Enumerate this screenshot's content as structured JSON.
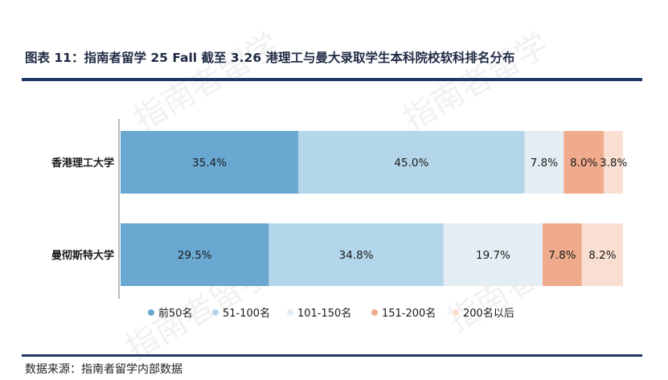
{
  "header": {
    "title": "图表 11：指南者留学 25 Fall 截至 3.26 港理工与曼大录取学生本科院校软科排名分布"
  },
  "footer": {
    "source": "数据来源：指南者留学内部数据"
  },
  "watermark": "指南者留学",
  "chart_data": {
    "type": "bar",
    "orientation": "horizontal",
    "stacked": "percent",
    "categories": [
      "香港理工大学",
      "曼彻斯特大学"
    ],
    "series": [
      {
        "name": "前50名",
        "values": [
          35.4,
          29.5
        ],
        "color": "#6aa8d1"
      },
      {
        "name": "51-100名",
        "values": [
          45.0,
          34.8
        ],
        "color": "#b4d6ea"
      },
      {
        "name": "101-150名",
        "values": [
          7.8,
          19.7
        ],
        "color": "#e4edf3"
      },
      {
        "name": "151-200名",
        "values": [
          8.0,
          7.8
        ],
        "color": "#f0ab8c"
      },
      {
        "name": "200名以后",
        "values": [
          3.8,
          8.2
        ],
        "color": "#f9dfd2"
      }
    ],
    "data_labels": [
      [
        "35.4%",
        "45.0%",
        "7.8%",
        "8.0%",
        "3.8%"
      ],
      [
        "29.5%",
        "34.8%",
        "19.7%",
        "7.8%",
        "8.2%"
      ]
    ],
    "xlim": [
      0,
      100
    ],
    "grid": false,
    "legend_position": "bottom"
  }
}
